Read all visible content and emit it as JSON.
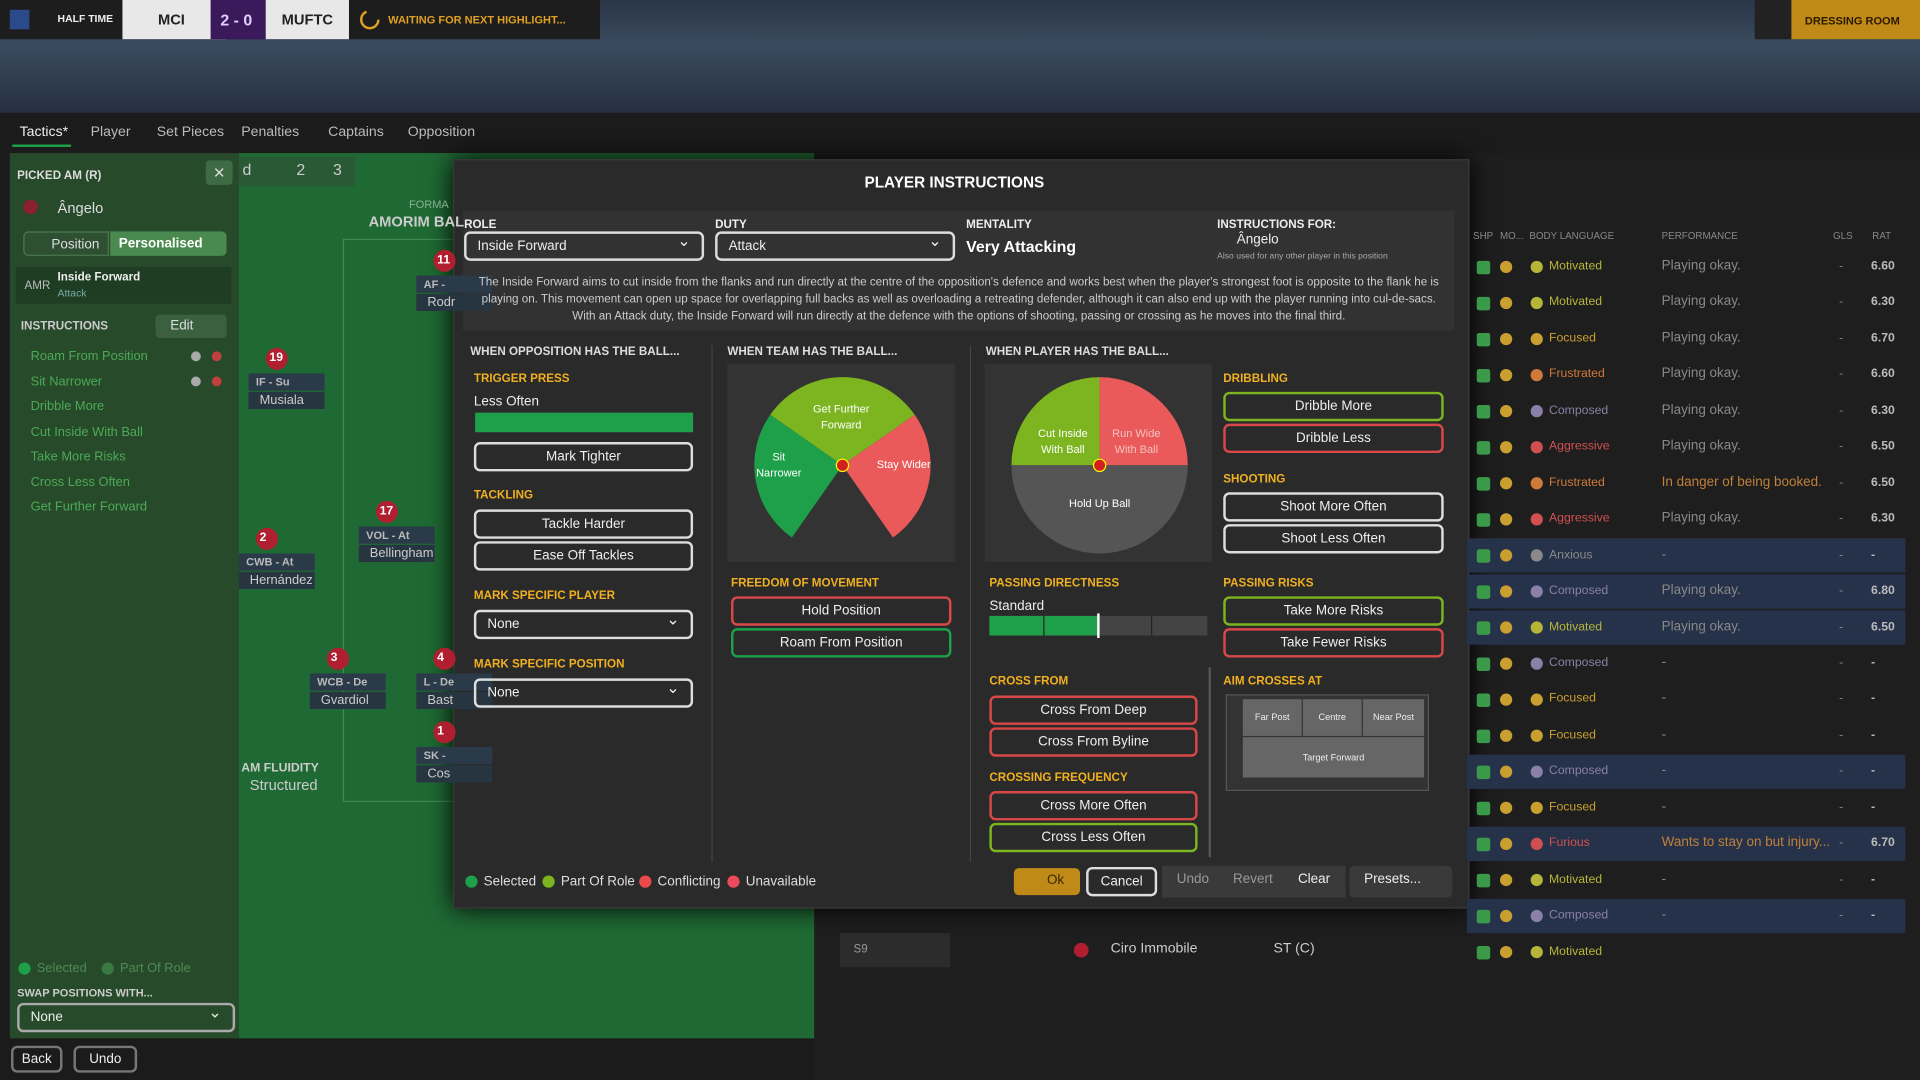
{
  "topbar": {
    "status": "HALF TIME",
    "home": "MCI",
    "score": "2 - 0",
    "away": "MUFTC",
    "waiting": "WAITING FOR NEXT HIGHLIGHT...",
    "dressing": "DRESSING ROOM"
  },
  "tabs": [
    "Tactics*",
    "Player",
    "Set Pieces",
    "Penalties",
    "Captains",
    "Opposition"
  ],
  "left_panel": {
    "picked": "PICKED AM (R)",
    "player": "Ângelo",
    "position_btn": "Position",
    "personalised_btn": "Personalised",
    "role_position": "AMR",
    "role": "Inside Forward",
    "duty": "Attack",
    "instructions_title": "INSTRUCTIONS",
    "edit": "Edit",
    "instructions": [
      "Roam From Position",
      "Sit Narrower",
      "Dribble More",
      "Cut Inside With Ball",
      "Take More Risks",
      "Cross Less Often",
      "Get Further Forward"
    ],
    "legend": [
      "Selected",
      "Part Of Role"
    ],
    "swap_title": "SWAP POSITIONS WITH...",
    "swap_value": "None",
    "back": "Back",
    "undo": "Undo"
  },
  "pitch": {
    "toolbar": [
      "d",
      "2",
      "3"
    ],
    "formation": "FORMA",
    "manager": "AMORIM BAL",
    "fluidity_label": "AM FLUIDITY",
    "fluidity": "Structured",
    "players": [
      {
        "number": "11",
        "role": "AF -",
        "name": "Rodr"
      },
      {
        "number": "19",
        "role": "IF - Su",
        "name": "Musiala"
      },
      {
        "number": "17",
        "role": "VOL - At",
        "name": "Bellingham"
      },
      {
        "number": "2",
        "role": "CWB - At",
        "name": "Hernández"
      },
      {
        "number": "3",
        "role": "WCB - De",
        "name": "Gvardiol"
      },
      {
        "number": "4",
        "role": "L - De",
        "name": "Bast"
      },
      {
        "number": "1",
        "role": "SK -",
        "name": "Cos"
      }
    ]
  },
  "modal": {
    "title": "PLAYER INSTRUCTIONS",
    "role_label": "ROLE",
    "role": "Inside Forward",
    "duty_label": "DUTY",
    "duty": "Attack",
    "mentality_label": "MENTALITY",
    "mentality": "Very Attacking",
    "for_label": "INSTRUCTIONS FOR:",
    "for_player": "Ângelo",
    "for_note": "Also used for any other player in this position",
    "description": "The Inside Forward aims to cut inside from the flanks and run directly at the centre of the opposition's defence and works best when the player's strongest foot is opposite to the flank he is playing on. This movement can open up space for overlapping full backs as well as overloading a retreating defender, although it can also end up with the player running into cul-de-sacs. With an Attack duty, the Inside Forward will run directly at the defence with the options of shooting, passing or crossing as he moves into the final third.",
    "col1": {
      "header": "WHEN OPPOSITION HAS THE BALL...",
      "trigger_label": "TRIGGER PRESS",
      "trigger_value": "Less Often",
      "mark_tighter": "Mark Tighter",
      "tackling_label": "TACKLING",
      "tackling": [
        "Tackle Harder",
        "Ease Off Tackles"
      ],
      "mark_player_label": "MARK SPECIFIC PLAYER",
      "mark_player": "None",
      "mark_position_label": "MARK SPECIFIC POSITION",
      "mark_position": "None"
    },
    "col2": {
      "header": "WHEN TEAM HAS THE BALL...",
      "wheel": [
        "Get Further Forward",
        "Sit Narrower",
        "Stay Wider"
      ],
      "freedom_label": "FREEDOM OF MOVEMENT",
      "freedom": [
        "Hold Position",
        "Roam From Position"
      ]
    },
    "col3": {
      "header": "WHEN PLAYER HAS THE BALL...",
      "wheel": [
        "Cut Inside With Ball",
        "Run Wide With Ball",
        "Hold Up Ball"
      ],
      "directness_label": "PASSING DIRECTNESS",
      "directness": "Standard",
      "cross_from_label": "CROSS FROM",
      "cross_from": [
        "Cross From Deep",
        "Cross From Byline"
      ],
      "crossing_freq_label": "CROSSING FREQUENCY",
      "crossing_freq": [
        "Cross More Often",
        "Cross Less Often"
      ]
    },
    "col4": {
      "dribbling_label": "DRIBBLING",
      "dribbling": [
        "Dribble More",
        "Dribble Less"
      ],
      "shooting_label": "SHOOTING",
      "shooting": [
        "Shoot More Often",
        "Shoot Less Often"
      ],
      "risks_label": "PASSING RISKS",
      "risks": [
        "Take More Risks",
        "Take Fewer Risks"
      ],
      "aim_label": "AIM CROSSES AT",
      "aim": [
        "Far Post",
        "Centre",
        "Near Post",
        "Target Forward"
      ]
    },
    "legend": [
      "Selected",
      "Part Of Role",
      "Conflicting",
      "Unavailable"
    ],
    "buttons": [
      "Ok",
      "Cancel",
      "Undo",
      "Revert",
      "Clear",
      "Presets..."
    ]
  },
  "table": {
    "headers": [
      "SHP",
      "MO...",
      "BODY LANGUAGE",
      "PERFORMANCE",
      "GLS",
      "RAT"
    ],
    "rows": [
      {
        "body": "Motivated",
        "color": "#b5b53a",
        "performance": "Playing okay.",
        "goals": "-",
        "rating": "6.60"
      },
      {
        "body": "Motivated",
        "color": "#b5b53a",
        "performance": "Playing okay.",
        "goals": "-",
        "rating": "6.30"
      },
      {
        "body": "Focused",
        "color": "#c9a030",
        "performance": "Playing okay.",
        "goals": "-",
        "rating": "6.70"
      },
      {
        "body": "Frustrated",
        "color": "#d07a3a",
        "performance": "Playing okay.",
        "goals": "-",
        "rating": "6.60"
      },
      {
        "body": "Composed",
        "color": "#8a80a8",
        "performance": "Playing okay.",
        "goals": "-",
        "rating": "6.30"
      },
      {
        "body": "Aggressive",
        "color": "#d05050",
        "performance": "Playing okay.",
        "goals": "-",
        "rating": "6.50"
      },
      {
        "body": "Frustrated",
        "color": "#d07a3a",
        "performance": "In danger of being booked.",
        "goals": "-",
        "rating": "6.50"
      },
      {
        "body": "Aggressive",
        "color": "#d05050",
        "performance": "Playing okay.",
        "goals": "-",
        "rating": "6.30"
      },
      {
        "body": "Anxious",
        "color": "#8a8a8a",
        "performance": "-",
        "goals": "-",
        "rating": "-"
      },
      {
        "body": "Composed",
        "color": "#8a80a8",
        "performance": "Playing okay.",
        "goals": "-",
        "rating": "6.80"
      },
      {
        "body": "Motivated",
        "color": "#b5b53a",
        "performance": "Playing okay.",
        "goals": "-",
        "rating": "6.50"
      },
      {
        "body": "Composed",
        "color": "#8a80a8",
        "performance": "-",
        "goals": "-",
        "rating": "-"
      },
      {
        "body": "Focused",
        "color": "#c9a030",
        "performance": "-",
        "goals": "-",
        "rating": "-"
      },
      {
        "body": "Focused",
        "color": "#c9a030",
        "performance": "-",
        "goals": "-",
        "rating": "-"
      },
      {
        "body": "Composed",
        "color": "#8a80a8",
        "performance": "-",
        "goals": "-",
        "rating": "-"
      },
      {
        "body": "Focused",
        "color": "#c9a030",
        "performance": "-",
        "goals": "-",
        "rating": "-"
      },
      {
        "body": "Furious",
        "color": "#d05050",
        "performance": "Wants to stay on but injury...",
        "goals": "-",
        "rating": "6.70"
      },
      {
        "body": "Motivated",
        "color": "#b5b53a",
        "performance": "-",
        "goals": "-",
        "rating": "-"
      },
      {
        "body": "Composed",
        "color": "#8a80a8",
        "performance": "-",
        "goals": "-",
        "rating": "-"
      },
      {
        "body": "Motivated",
        "color": "#b5b53a",
        "performance": "",
        "goals": "",
        "rating": ""
      }
    ],
    "sub": {
      "slot": "S9",
      "name": "Ciro Immobile",
      "position": "ST (C)"
    }
  }
}
